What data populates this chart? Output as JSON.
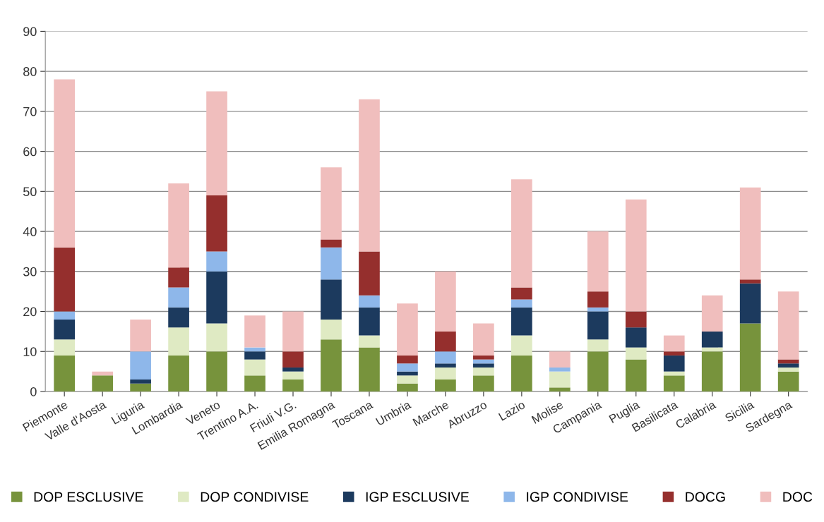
{
  "chart_data": {
    "type": "bar",
    "stacked": true,
    "categories": [
      "Piemonte",
      "Valle d'Aosta",
      "Liguria",
      "Lombardia",
      "Veneto",
      "Trentino A.A.",
      "Friuli V.G.",
      "Emilia Romagna",
      "Toscana",
      "Umbria",
      "Marche",
      "Abruzzo",
      "Lazio",
      "Molise",
      "Campania",
      "Puglia",
      "Basilicata",
      "Calabria",
      "Sicilia",
      "Sardegna"
    ],
    "series": [
      {
        "name": "DOP ESCLUSIVE",
        "color": "#77933c",
        "values": [
          9,
          4,
          2,
          9,
          10,
          4,
          3,
          13,
          11,
          2,
          3,
          4,
          9,
          1,
          10,
          8,
          4,
          10,
          17,
          5
        ]
      },
      {
        "name": "DOP CONDIVISE",
        "color": "#dfeac3",
        "values": [
          4,
          0,
          0,
          7,
          7,
          4,
          2,
          5,
          3,
          2,
          3,
          2,
          5,
          4,
          3,
          3,
          1,
          1,
          0,
          1
        ]
      },
      {
        "name": "IGP ESCLUSIVE",
        "color": "#1c3a5e",
        "values": [
          5,
          0,
          1,
          5,
          13,
          2,
          1,
          10,
          7,
          1,
          1,
          1,
          7,
          0,
          7,
          5,
          4,
          4,
          10,
          1
        ]
      },
      {
        "name": "IGP CONDIVISE",
        "color": "#8eb7ea",
        "values": [
          2,
          0,
          7,
          5,
          5,
          1,
          0,
          8,
          3,
          2,
          3,
          1,
          2,
          1,
          1,
          0,
          0,
          0,
          0,
          0
        ]
      },
      {
        "name": "DOCG",
        "color": "#952f2d",
        "values": [
          16,
          0,
          0,
          5,
          14,
          0,
          4,
          2,
          11,
          2,
          5,
          1,
          3,
          0,
          4,
          4,
          1,
          0,
          1,
          1
        ]
      },
      {
        "name": "DOC",
        "color": "#f0bebd",
        "values": [
          42,
          1,
          8,
          21,
          26,
          8,
          10,
          18,
          38,
          13,
          15,
          8,
          27,
          4,
          15,
          28,
          4,
          9,
          23,
          17
        ]
      }
    ],
    "ylim": [
      0,
      90
    ],
    "yticks": [
      0,
      10,
      20,
      30,
      40,
      50,
      60,
      70,
      80,
      90
    ],
    "grid": "y",
    "legend": "bottom"
  }
}
